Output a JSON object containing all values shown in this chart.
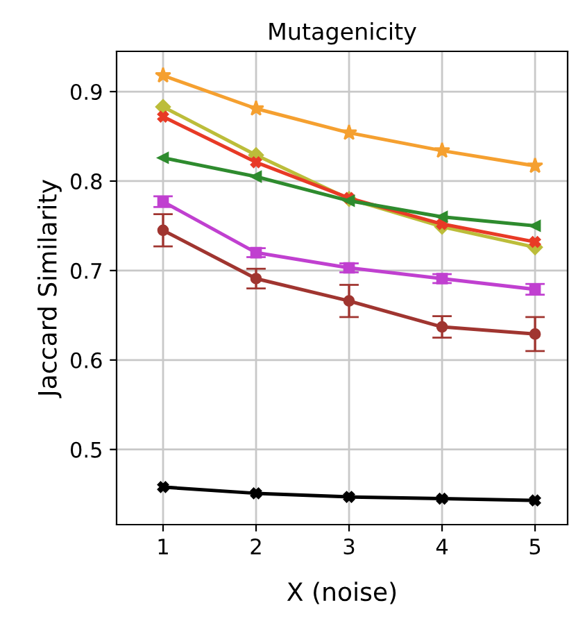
{
  "chart_data": {
    "type": "line",
    "title": "Mutagenicity",
    "xlabel": "X (noise)",
    "ylabel": "Jaccard Similarity",
    "x": [
      1,
      2,
      3,
      4,
      5
    ],
    "xlim": [
      0.5,
      5.35
    ],
    "xticks": [
      1,
      2,
      3,
      4,
      5
    ],
    "ylim": [
      0.416,
      0.945
    ],
    "yticks": [
      0.5,
      0.6,
      0.7,
      0.8,
      0.9
    ],
    "grid": true,
    "legend": false,
    "series": [
      {
        "color": "#f5a030",
        "marker": "star",
        "values": [
          0.918,
          0.881,
          0.854,
          0.834,
          0.817
        ]
      },
      {
        "color": "#bcbd3a",
        "marker": "diamond",
        "values": [
          0.883,
          0.829,
          0.78,
          0.749,
          0.726
        ]
      },
      {
        "color": "#e83a26",
        "marker": "cross",
        "values": [
          0.872,
          0.821,
          0.781,
          0.752,
          0.732
        ]
      },
      {
        "color": "#2e8b2e",
        "marker": "triangle",
        "values": [
          0.826,
          0.805,
          0.778,
          0.76,
          0.75
        ]
      },
      {
        "color": "#c040d0",
        "marker": "square",
        "values": [
          0.777,
          0.72,
          0.703,
          0.691,
          0.679
        ],
        "errors": [
          0.006,
          0.005,
          0.005,
          0.005,
          0.006
        ]
      },
      {
        "color": "#a03530",
        "marker": "circle",
        "values": [
          0.745,
          0.691,
          0.666,
          0.637,
          0.629
        ],
        "errors": [
          0.018,
          0.011,
          0.018,
          0.012,
          0.019
        ]
      },
      {
        "color": "#000000",
        "marker": "cross",
        "values": [
          0.458,
          0.451,
          0.447,
          0.445,
          0.443
        ]
      }
    ]
  }
}
